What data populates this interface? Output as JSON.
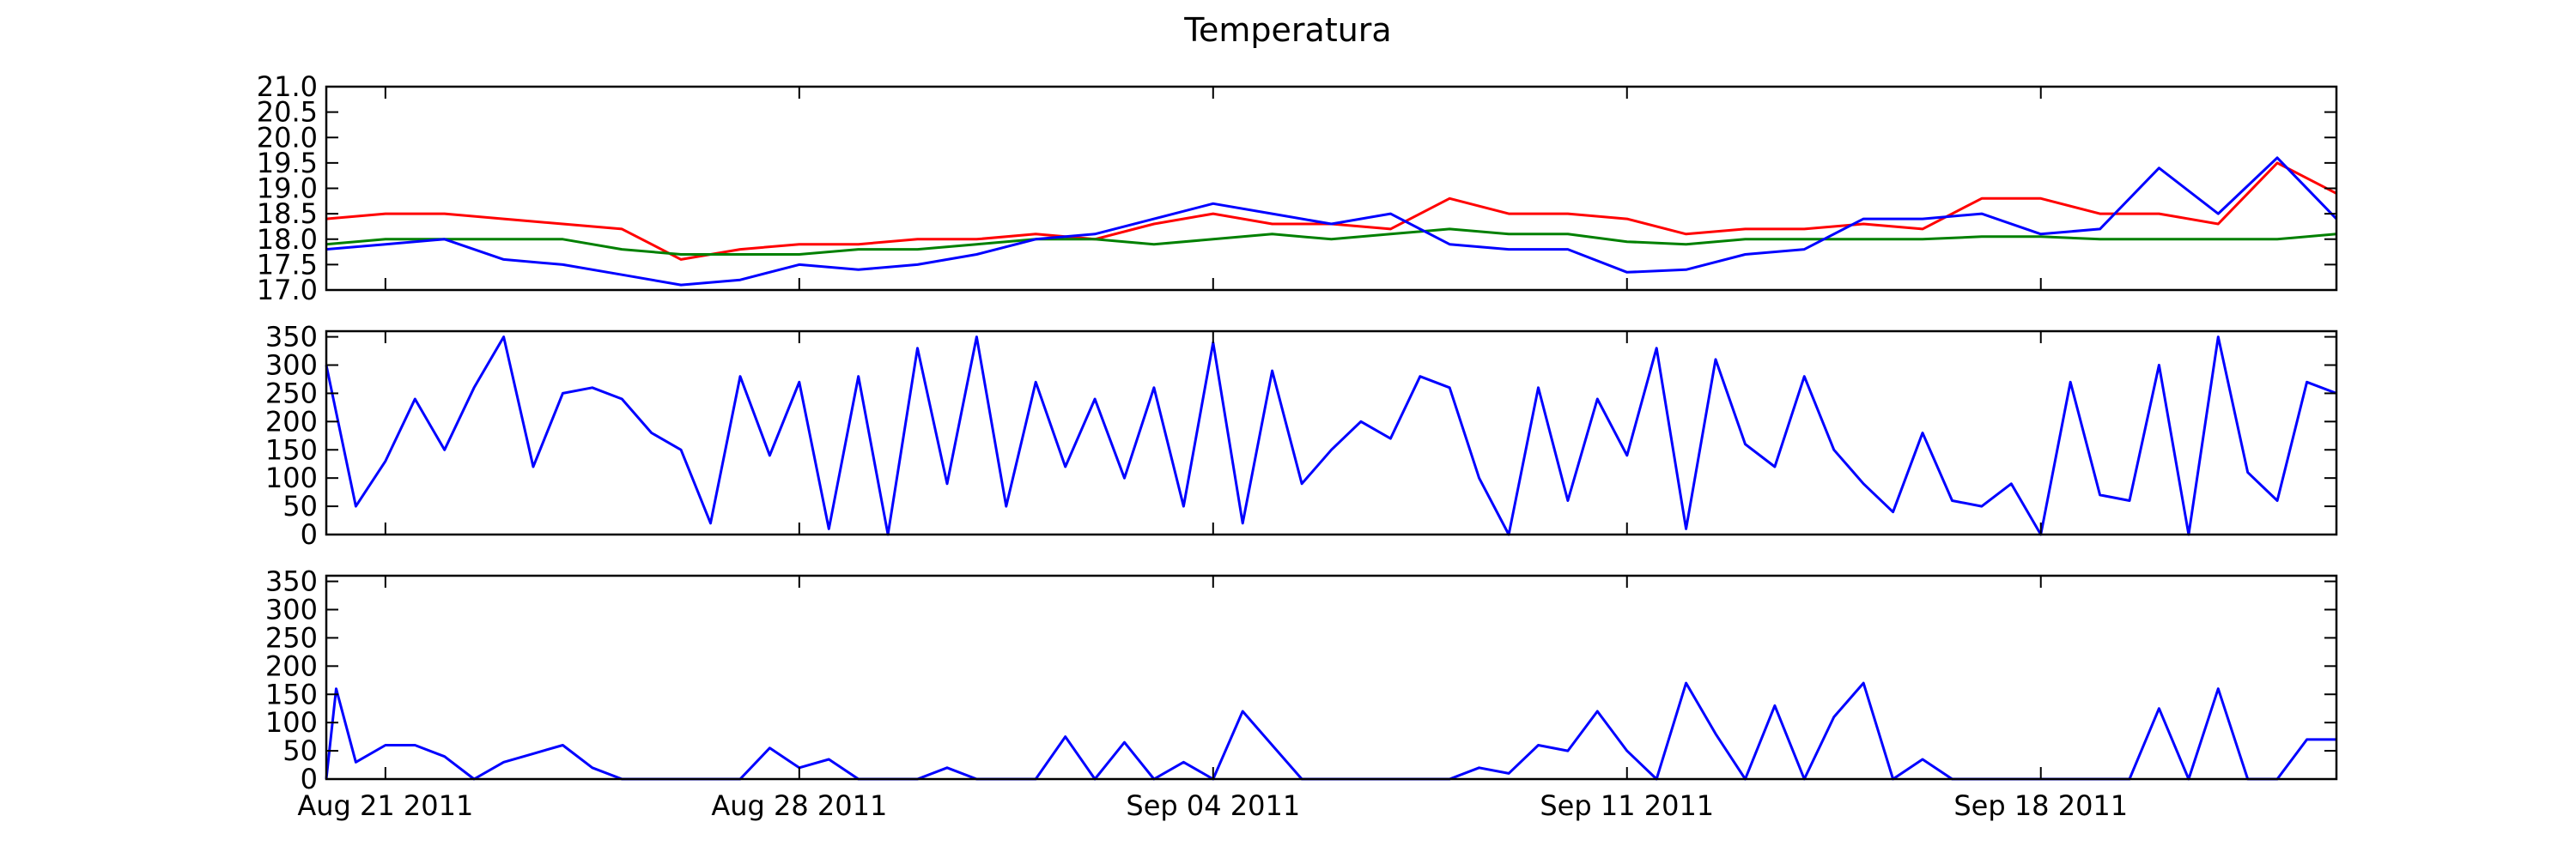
{
  "chart_data": {
    "title": "Temperatura",
    "type": "line",
    "x_axis": {
      "type": "date",
      "range": [
        "2011-08-20",
        "2011-09-23"
      ],
      "tick_dates": [
        "2011-08-21",
        "2011-08-28",
        "2011-09-04",
        "2011-09-11",
        "2011-09-18"
      ],
      "tick_labels": [
        "Aug 21 2011",
        "Aug 28 2011",
        "Sep 04 2011",
        "Sep 11 2011",
        "Sep 18 2011"
      ]
    },
    "panels": [
      {
        "type": "line",
        "ylim": [
          17.0,
          21.0
        ],
        "yticks": [
          "17.0",
          "17.5",
          "18.0",
          "18.5",
          "19.0",
          "19.5",
          "20.0",
          "20.5",
          "21.0"
        ],
        "series": [
          {
            "color": "#ff0000",
            "x": [
              "2011-08-20",
              "2011-08-21",
              "2011-08-22",
              "2011-08-23",
              "2011-08-24",
              "2011-08-25",
              "2011-08-26",
              "2011-08-27",
              "2011-08-28",
              "2011-08-29",
              "2011-08-30",
              "2011-08-31",
              "2011-09-01",
              "2011-09-02",
              "2011-09-03",
              "2011-09-04",
              "2011-09-05",
              "2011-09-06",
              "2011-09-07",
              "2011-09-08",
              "2011-09-09",
              "2011-09-10",
              "2011-09-11",
              "2011-09-12",
              "2011-09-13",
              "2011-09-14",
              "2011-09-15",
              "2011-09-16",
              "2011-09-17",
              "2011-09-18",
              "2011-09-19",
              "2011-09-20",
              "2011-09-21",
              "2011-09-22",
              "2011-09-23"
            ],
            "y": [
              18.4,
              18.5,
              18.5,
              18.4,
              18.3,
              18.2,
              17.6,
              17.8,
              17.9,
              17.9,
              18.0,
              18.0,
              18.1,
              18.0,
              18.3,
              18.5,
              18.3,
              18.3,
              18.2,
              18.8,
              18.5,
              18.5,
              18.4,
              18.1,
              18.2,
              18.2,
              18.3,
              18.2,
              18.8,
              18.8,
              18.5,
              18.5,
              18.3,
              19.5,
              18.9
            ]
          },
          {
            "color": "#008000",
            "x": [
              "2011-08-20",
              "2011-08-21",
              "2011-08-22",
              "2011-08-23",
              "2011-08-24",
              "2011-08-25",
              "2011-08-26",
              "2011-08-27",
              "2011-08-28",
              "2011-08-29",
              "2011-08-30",
              "2011-08-31",
              "2011-09-01",
              "2011-09-02",
              "2011-09-03",
              "2011-09-04",
              "2011-09-05",
              "2011-09-06",
              "2011-09-07",
              "2011-09-08",
              "2011-09-09",
              "2011-09-10",
              "2011-09-11",
              "2011-09-12",
              "2011-09-13",
              "2011-09-14",
              "2011-09-15",
              "2011-09-16",
              "2011-09-17",
              "2011-09-18",
              "2011-09-19",
              "2011-09-20",
              "2011-09-21",
              "2011-09-22",
              "2011-09-23"
            ],
            "y": [
              17.9,
              18.0,
              18.0,
              18.0,
              18.0,
              17.8,
              17.7,
              17.7,
              17.7,
              17.8,
              17.8,
              17.9,
              18.0,
              18.0,
              17.9,
              18.0,
              18.1,
              18.0,
              18.1,
              18.2,
              18.1,
              18.1,
              17.95,
              17.9,
              18.0,
              18.0,
              18.0,
              18.0,
              18.05,
              18.05,
              18.0,
              18.0,
              18.0,
              18.0,
              18.1
            ]
          },
          {
            "color": "#0000ff",
            "x": [
              "2011-08-20",
              "2011-08-21",
              "2011-08-22",
              "2011-08-23",
              "2011-08-24",
              "2011-08-25",
              "2011-08-26",
              "2011-08-27",
              "2011-08-28",
              "2011-08-29",
              "2011-08-30",
              "2011-08-31",
              "2011-09-01",
              "2011-09-02",
              "2011-09-03",
              "2011-09-04",
              "2011-09-05",
              "2011-09-06",
              "2011-09-07",
              "2011-09-08",
              "2011-09-09",
              "2011-09-10",
              "2011-09-11",
              "2011-09-12",
              "2011-09-13",
              "2011-09-14",
              "2011-09-15",
              "2011-09-16",
              "2011-09-17",
              "2011-09-18",
              "2011-09-19",
              "2011-09-20",
              "2011-09-21",
              "2011-09-22",
              "2011-09-23"
            ],
            "y": [
              17.8,
              17.9,
              18.0,
              17.6,
              17.5,
              17.3,
              17.1,
              17.2,
              17.5,
              17.4,
              17.5,
              17.7,
              18.0,
              18.1,
              18.4,
              18.7,
              18.5,
              18.3,
              18.5,
              17.9,
              17.8,
              17.8,
              17.35,
              17.4,
              17.7,
              17.8,
              18.4,
              18.4,
              18.5,
              18.1,
              18.2,
              19.4,
              18.5,
              19.6,
              18.4
            ]
          }
        ]
      },
      {
        "type": "line",
        "ylim": [
          0,
          360
        ],
        "yticks": [
          "0",
          "50",
          "100",
          "150",
          "200",
          "250",
          "300",
          "350"
        ],
        "series": [
          {
            "color": "#0000ff",
            "x": [
              "2011-08-20",
              "2011-08-20 12:00",
              "2011-08-21",
              "2011-08-21 12:00",
              "2011-08-22",
              "2011-08-22 12:00",
              "2011-08-23",
              "2011-08-23 12:00",
              "2011-08-24",
              "2011-08-24 12:00",
              "2011-08-25",
              "2011-08-25 12:00",
              "2011-08-26",
              "2011-08-26 12:00",
              "2011-08-27",
              "2011-08-27 12:00",
              "2011-08-28",
              "2011-08-28 12:00",
              "2011-08-29",
              "2011-08-29 12:00",
              "2011-08-30",
              "2011-08-30 12:00",
              "2011-08-31",
              "2011-08-31 12:00",
              "2011-09-01",
              "2011-09-01 12:00",
              "2011-09-02",
              "2011-09-02 12:00",
              "2011-09-03",
              "2011-09-03 12:00",
              "2011-09-04",
              "2011-09-04 12:00",
              "2011-09-05",
              "2011-09-05 12:00",
              "2011-09-06",
              "2011-09-06 12:00",
              "2011-09-07",
              "2011-09-07 12:00",
              "2011-09-08",
              "2011-09-08 12:00",
              "2011-09-09",
              "2011-09-09 12:00",
              "2011-09-10",
              "2011-09-10 12:00",
              "2011-09-11",
              "2011-09-11 12:00",
              "2011-09-12",
              "2011-09-12 12:00",
              "2011-09-13",
              "2011-09-13 12:00",
              "2011-09-14",
              "2011-09-14 12:00",
              "2011-09-15",
              "2011-09-15 12:00",
              "2011-09-16",
              "2011-09-16 12:00",
              "2011-09-17",
              "2011-09-17 12:00",
              "2011-09-18",
              "2011-09-18 12:00",
              "2011-09-19",
              "2011-09-19 12:00",
              "2011-09-20",
              "2011-09-20 12:00",
              "2011-09-21",
              "2011-09-21 12:00",
              "2011-09-22",
              "2011-09-22 12:00",
              "2011-09-23"
            ],
            "y": [
              300,
              50,
              130,
              240,
              150,
              260,
              350,
              120,
              250,
              260,
              240,
              180,
              150,
              20,
              280,
              140,
              270,
              10,
              280,
              0,
              330,
              90,
              350,
              50,
              270,
              120,
              240,
              100,
              260,
              50,
              340,
              20,
              290,
              90,
              150,
              200,
              170,
              280,
              260,
              100,
              0,
              260,
              60,
              240,
              140,
              330,
              10,
              310,
              160,
              120,
              280,
              150,
              90,
              40,
              180,
              60,
              50,
              90,
              0,
              270,
              70,
              60,
              300,
              0,
              350,
              110,
              60,
              270,
              250
            ]
          }
        ]
      },
      {
        "type": "line",
        "ylim": [
          0,
          360
        ],
        "yticks": [
          "0",
          "50",
          "100",
          "150",
          "200",
          "250",
          "300",
          "350"
        ],
        "series": [
          {
            "color": "#0000ff",
            "x": [
              "2011-08-20",
              "2011-08-20 04:00",
              "2011-08-20 12:00",
              "2011-08-21",
              "2011-08-21 12:00",
              "2011-08-22",
              "2011-08-22 12:00",
              "2011-08-23",
              "2011-08-23 12:00",
              "2011-08-24",
              "2011-08-24 12:00",
              "2011-08-25",
              "2011-08-25 12:00",
              "2011-08-26",
              "2011-08-26 12:00",
              "2011-08-27",
              "2011-08-27 12:00",
              "2011-08-28",
              "2011-08-28 12:00",
              "2011-08-29",
              "2011-08-29 12:00",
              "2011-08-30",
              "2011-08-30 12:00",
              "2011-08-31",
              "2011-08-31 12:00",
              "2011-09-01",
              "2011-09-01 12:00",
              "2011-09-02",
              "2011-09-02 12:00",
              "2011-09-03",
              "2011-09-03 12:00",
              "2011-09-04",
              "2011-09-04 12:00",
              "2011-09-05",
              "2011-09-05 12:00",
              "2011-09-06",
              "2011-09-06 12:00",
              "2011-09-07",
              "2011-09-07 12:00",
              "2011-09-08",
              "2011-09-08 12:00",
              "2011-09-09",
              "2011-09-09 12:00",
              "2011-09-10",
              "2011-09-10 12:00",
              "2011-09-11",
              "2011-09-11 12:00",
              "2011-09-12",
              "2011-09-12 12:00",
              "2011-09-13",
              "2011-09-13 12:00",
              "2011-09-14",
              "2011-09-14 12:00",
              "2011-09-15",
              "2011-09-15 12:00",
              "2011-09-16",
              "2011-09-16 12:00",
              "2011-09-17",
              "2011-09-17 12:00",
              "2011-09-18",
              "2011-09-18 12:00",
              "2011-09-19",
              "2011-09-19 12:00",
              "2011-09-20",
              "2011-09-20 12:00",
              "2011-09-21",
              "2011-09-21 12:00",
              "2011-09-22",
              "2011-09-22 12:00",
              "2011-09-23"
            ],
            "y": [
              0,
              160,
              30,
              60,
              60,
              40,
              0,
              30,
              45,
              60,
              20,
              0,
              0,
              0,
              0,
              0,
              55,
              20,
              35,
              0,
              0,
              0,
              20,
              0,
              0,
              0,
              75,
              0,
              65,
              0,
              30,
              0,
              120,
              60,
              0,
              0,
              0,
              0,
              0,
              0,
              20,
              10,
              60,
              50,
              120,
              50,
              0,
              170,
              80,
              0,
              130,
              0,
              110,
              170,
              0,
              35,
              0,
              0,
              0,
              0,
              0,
              0,
              0,
              125,
              0,
              160,
              0,
              0,
              70,
              70
            ]
          }
        ]
      }
    ]
  }
}
